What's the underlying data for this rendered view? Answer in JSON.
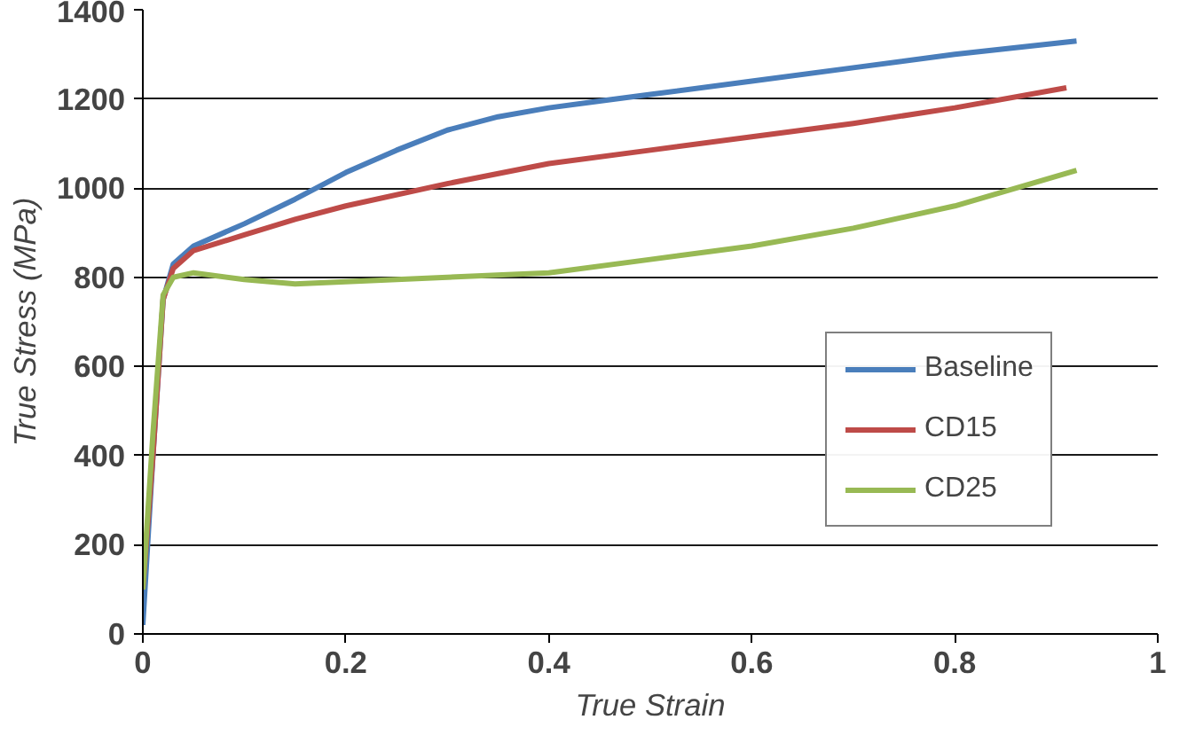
{
  "chart_data": {
    "type": "line",
    "xlabel": "True Strain",
    "ylabel": "True Stress (MPa)",
    "xlim": [
      0,
      1
    ],
    "xticks": [
      0,
      0.2,
      0.4,
      0.6,
      0.8,
      1
    ],
    "ylim": [
      0,
      1400
    ],
    "yticks": [
      0,
      200,
      400,
      600,
      800,
      1000,
      1200,
      1400
    ],
    "grid": "y",
    "legend": "right",
    "marker": "none",
    "line_style": "solid",
    "series": [
      {
        "name": "Baseline",
        "color": "#4a7ebb",
        "x": [
          0,
          0.01,
          0.02,
          0.03,
          0.05,
          0.1,
          0.15,
          0.2,
          0.25,
          0.3,
          0.35,
          0.4,
          0.45,
          0.5,
          0.6,
          0.7,
          0.8,
          0.92
        ],
        "values": [
          20,
          400,
          750,
          830,
          870,
          920,
          975,
          1035,
          1085,
          1130,
          1160,
          1180,
          1195,
          1210,
          1240,
          1270,
          1300,
          1330
        ]
      },
      {
        "name": "CD15",
        "color": "#be4b48",
        "x": [
          0,
          0.01,
          0.02,
          0.03,
          0.05,
          0.1,
          0.15,
          0.2,
          0.3,
          0.4,
          0.5,
          0.6,
          0.7,
          0.8,
          0.91
        ],
        "values": [
          100,
          400,
          750,
          820,
          860,
          895,
          930,
          960,
          1010,
          1055,
          1085,
          1115,
          1145,
          1180,
          1225
        ]
      },
      {
        "name": "CD25",
        "color": "#98b954",
        "x": [
          0,
          0.01,
          0.02,
          0.03,
          0.05,
          0.1,
          0.15,
          0.2,
          0.3,
          0.4,
          0.5,
          0.6,
          0.7,
          0.8,
          0.92
        ],
        "values": [
          100,
          450,
          760,
          800,
          810,
          795,
          785,
          790,
          800,
          810,
          840,
          870,
          910,
          960,
          1040
        ]
      }
    ]
  }
}
